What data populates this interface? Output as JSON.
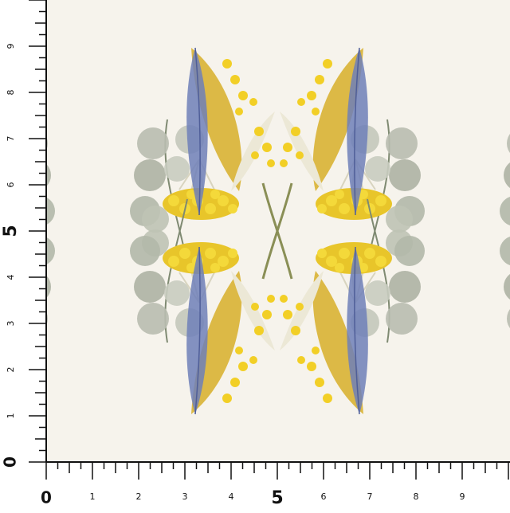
{
  "ruler": {
    "left_labels": [
      "0",
      "1",
      "2",
      "3",
      "4",
      "5",
      "6",
      "7",
      "8",
      "9"
    ],
    "bottom_labels": [
      "0",
      "1",
      "2",
      "3",
      "4",
      "5",
      "6",
      "7",
      "8",
      "9"
    ]
  }
}
